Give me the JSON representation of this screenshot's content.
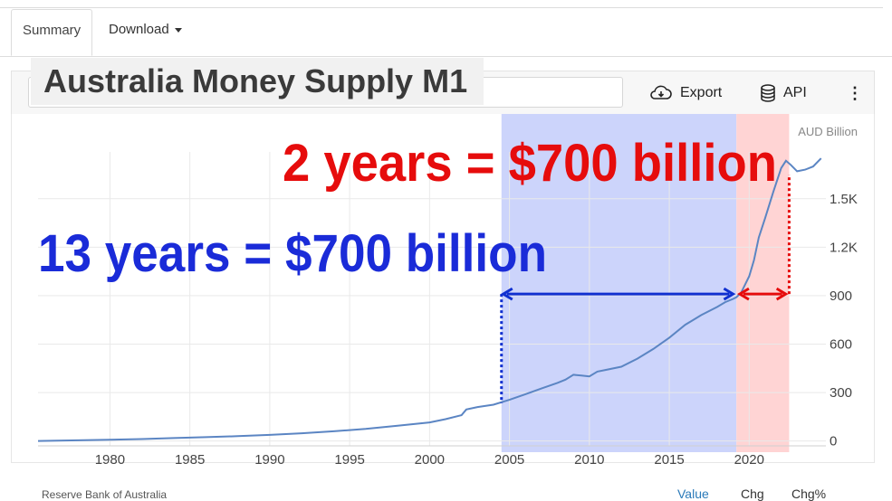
{
  "tabs": {
    "summary": "Summary",
    "download": "Download"
  },
  "toolbar": {
    "search_prefix": "[",
    "export": "Export",
    "api": "API",
    "more": "⋮"
  },
  "title_overlay": "Australia Money Supply M1",
  "annotations": {
    "red_text": "2 years = $700 billion",
    "blue_text": "13 years = $700 billion"
  },
  "footer": {
    "source": "Reserve Bank of Australia",
    "value": "Value",
    "chg": "Chg",
    "chg_pct": "Chg%"
  },
  "colors": {
    "line": "#5b85c3",
    "blue_band": "#ccd4fb",
    "red_band": "#ffd4d4",
    "blue_text": "#1a2bd8",
    "red_text": "#e60c0c",
    "axis_text": "#666666"
  },
  "chart_data": {
    "type": "line",
    "unit_label": "AUD Billion",
    "xlim": [
      1975.5,
      2024.8
    ],
    "ylim": [
      -30,
      1790
    ],
    "x_ticks": [
      1980,
      1985,
      1990,
      1995,
      2000,
      2005,
      2010,
      2015,
      2020
    ],
    "y_ticks": [
      0,
      300,
      600,
      900,
      1200,
      1500
    ],
    "y_tick_labels": [
      "0",
      "300",
      "600",
      "900",
      "1.2K",
      "1.5K"
    ],
    "x_tick_labels": [
      "1980",
      "1985",
      "1990",
      "1995",
      "2000",
      "2005",
      "2010",
      "2015",
      "2020"
    ],
    "series": [
      {
        "x": [
          1975.5,
          1978,
          1980,
          1982,
          1984,
          1986,
          1988,
          1990,
          1992,
          1994,
          1996,
          1998,
          2000,
          2001,
          2002,
          2002.3,
          2003,
          2004,
          2005,
          2006,
          2007,
          2008,
          2008.5,
          2009,
          2009.5,
          2010,
          2010.5,
          2011,
          2012,
          2013,
          2014,
          2015,
          2016,
          2017,
          2018,
          2018.5,
          2019,
          2019.2,
          2019.5,
          2020,
          2020.3,
          2020.6,
          2021,
          2021.5,
          2022,
          2022.3,
          2022.6,
          2023,
          2023.5,
          2024,
          2024.5
        ],
        "y": [
          0,
          4,
          8,
          12,
          18,
          24,
          30,
          38,
          48,
          60,
          75,
          95,
          115,
          135,
          160,
          195,
          210,
          225,
          255,
          290,
          325,
          360,
          380,
          410,
          405,
          400,
          430,
          440,
          460,
          510,
          570,
          640,
          720,
          780,
          830,
          860,
          880,
          890,
          920,
          1020,
          1120,
          1260,
          1380,
          1540,
          1690,
          1735,
          1710,
          1670,
          1680,
          1700,
          1750
        ]
      }
    ],
    "highlight_bands": [
      {
        "from": 2004.5,
        "to": 2019.2,
        "color": "blue"
      },
      {
        "from": 2019.2,
        "to": 2022.5,
        "color": "red"
      }
    ],
    "arrows": [
      {
        "from": 2004.5,
        "to": 2019.1,
        "y": 910,
        "color": "blue",
        "drop_from_y": 235,
        "drop_x": 2004.5
      },
      {
        "from": 2019.3,
        "to": 2022.4,
        "y": 910,
        "color": "red",
        "drop_from_y": 1650,
        "drop_x": 2022.5
      }
    ]
  }
}
